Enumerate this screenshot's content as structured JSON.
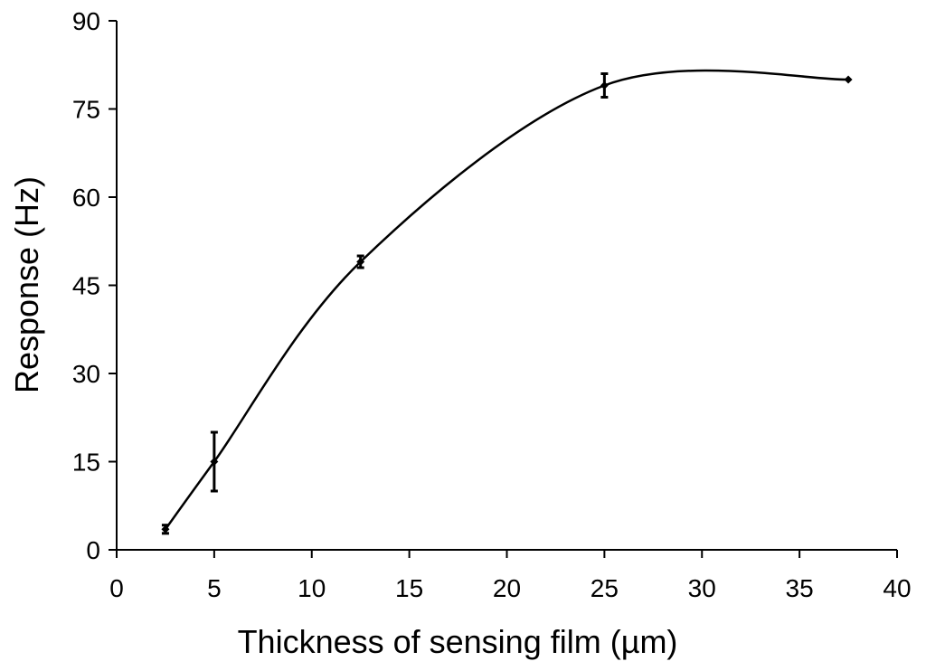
{
  "chart_data": {
    "type": "scatter",
    "xlabel": "Thickness of sensing film (µm)",
    "ylabel": "Response (Hz)",
    "xlim": [
      0,
      40
    ],
    "ylim": [
      0,
      90
    ],
    "xticks": [
      0,
      5,
      10,
      15,
      20,
      25,
      30,
      35,
      40
    ],
    "yticks": [
      0,
      15,
      30,
      45,
      60,
      75,
      90
    ],
    "x_tick_labels": [
      "0",
      "5",
      "10",
      "15",
      "20",
      "25",
      "30",
      "35",
      "40"
    ],
    "y_tick_labels": [
      "0",
      "15",
      "30",
      "45",
      "60",
      "75",
      "90"
    ],
    "grid": false,
    "smooth_line": true,
    "series": [
      {
        "x": [
          2.5,
          5,
          12.5,
          25,
          37.5
        ],
        "y": [
          3.5,
          15,
          49,
          79,
          80
        ],
        "error": [
          0.7,
          5,
          1,
          2,
          0
        ]
      }
    ]
  }
}
